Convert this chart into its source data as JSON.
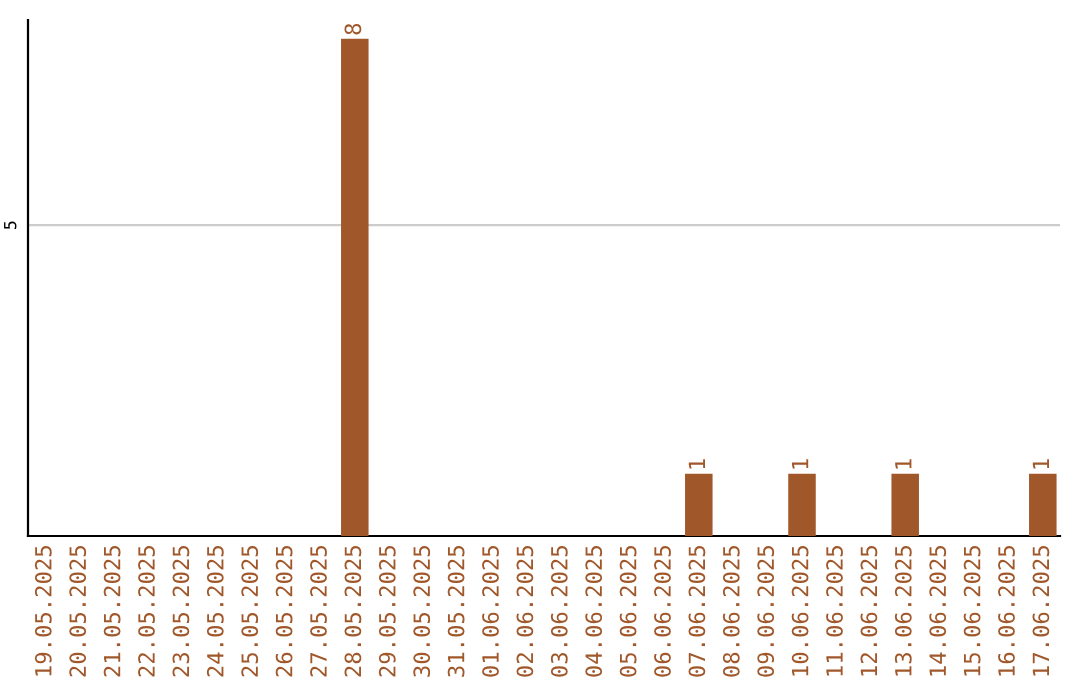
{
  "chart_data": {
    "type": "bar",
    "categories": [
      "19.05.2025",
      "20.05.2025",
      "21.05.2025",
      "22.05.2025",
      "23.05.2025",
      "24.05.2025",
      "25.05.2025",
      "26.05.2025",
      "27.05.2025",
      "28.05.2025",
      "29.05.2025",
      "30.05.2025",
      "31.05.2025",
      "01.06.2025",
      "02.06.2025",
      "03.06.2025",
      "04.06.2025",
      "05.06.2025",
      "06.06.2025",
      "07.06.2025",
      "08.06.2025",
      "09.06.2025",
      "10.06.2025",
      "11.06.2025",
      "12.06.2025",
      "13.06.2025",
      "14.06.2025",
      "15.06.2025",
      "16.06.2025",
      "17.06.2025"
    ],
    "values": [
      0,
      0,
      0,
      0,
      0,
      0,
      0,
      0,
      0,
      8,
      0,
      0,
      0,
      0,
      0,
      0,
      0,
      0,
      0,
      1,
      0,
      0,
      1,
      0,
      0,
      1,
      0,
      0,
      0,
      1
    ],
    "value_labels": [
      null,
      null,
      null,
      null,
      null,
      null,
      null,
      null,
      null,
      "8",
      null,
      null,
      null,
      null,
      null,
      null,
      null,
      null,
      null,
      "1",
      null,
      null,
      "1",
      null,
      null,
      "1",
      null,
      null,
      null,
      "1"
    ],
    "color": "#a0572a",
    "ylim": [
      0,
      8.3
    ],
    "yticks": [
      5
    ],
    "grid": "y",
    "legend": false
  }
}
